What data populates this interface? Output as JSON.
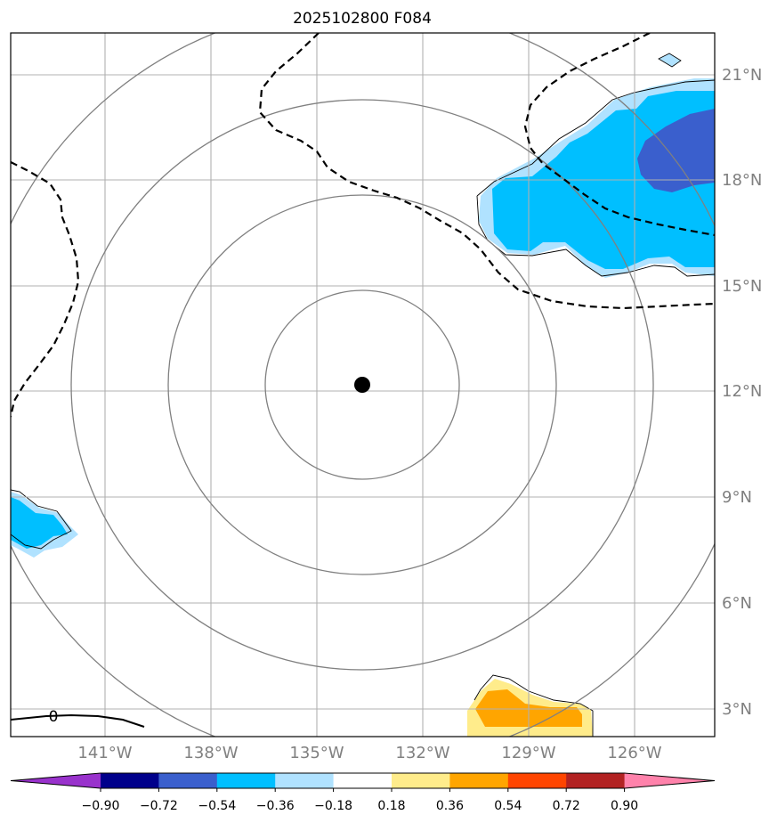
{
  "title": "2025102800 F084",
  "center_marker": {
    "lat": 12.2,
    "lon": -133.8
  },
  "range_rings_deg": [
    2.75,
    5.5,
    8.25,
    11.0
  ],
  "lat_labels": [
    "21°N",
    "18°N",
    "15°N",
    "12°N",
    "9°N",
    "6°N",
    "3°N"
  ],
  "lon_labels": [
    "141°W",
    "138°W",
    "135°W",
    "132°W",
    "129°W",
    "126°W"
  ],
  "contour_label": "0",
  "colorbar": {
    "ticks": [
      "−0.90",
      "−0.72",
      "−0.54",
      "−0.36",
      "−0.18",
      "0.18",
      "0.36",
      "0.54",
      "0.72",
      "0.90"
    ],
    "colors": [
      "#9932cc",
      "#00008b",
      "#3a5fcd",
      "#00bfff",
      "#b0e2ff",
      "#ffffff",
      "#ffec8b",
      "#ffa500",
      "#ff4500",
      "#b22222",
      "#ff82ab"
    ]
  },
  "fill_colors": {
    "light_blue": "#b0e2ff",
    "deep_sky_blue": "#00bfff",
    "royal_blue": "#3a5fcd",
    "light_yellow": "#ffec8b",
    "orange": "#ffa500"
  }
}
